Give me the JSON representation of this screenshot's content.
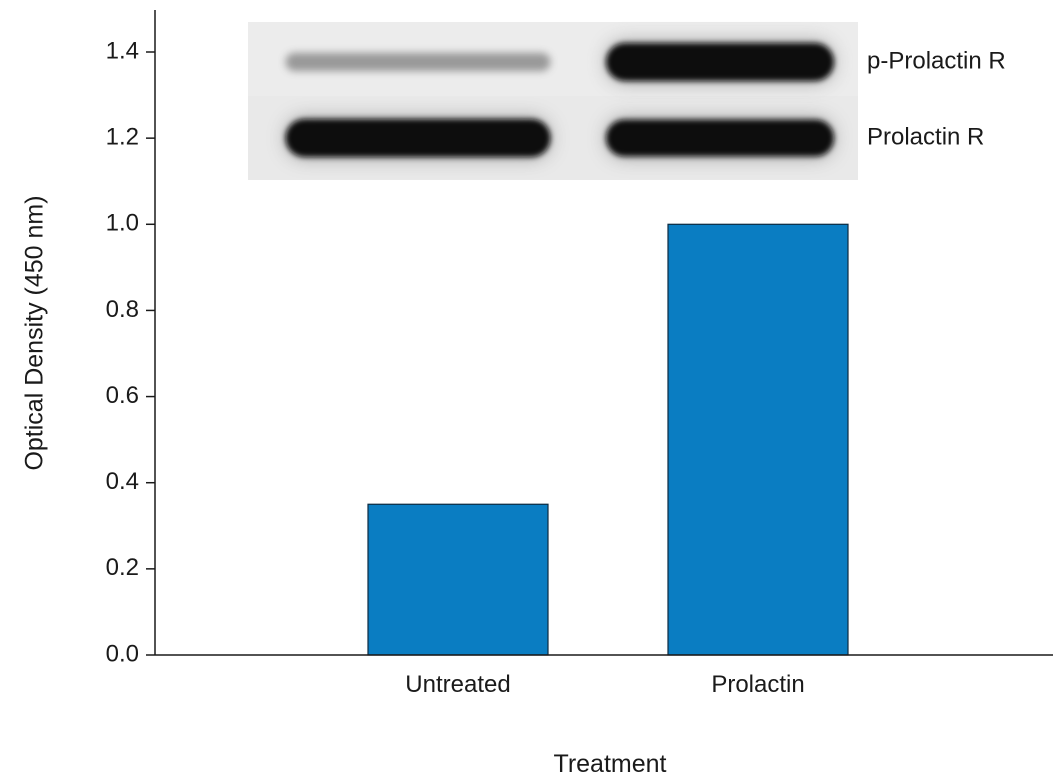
{
  "chart_data": {
    "type": "bar",
    "categories": [
      "Untreated",
      "Prolactin"
    ],
    "values": [
      0.35,
      1.0
    ],
    "xlabel": "Treatment",
    "ylabel": "Optical Density (450 nm)",
    "ylim": [
      0,
      1.4
    ],
    "yticks": [
      "0.0",
      "0.2",
      "0.4",
      "0.6",
      "0.8",
      "1.0",
      "1.2",
      "1.4"
    ],
    "bar_color": "#0a7dc2",
    "grid": false,
    "inset": {
      "type": "western-blot",
      "bands": [
        {
          "label": "p-Prolactin R",
          "intensities": [
            0.18,
            1.0
          ]
        },
        {
          "label": "Prolactin R",
          "intensities": [
            1.0,
            0.95
          ]
        }
      ]
    }
  }
}
